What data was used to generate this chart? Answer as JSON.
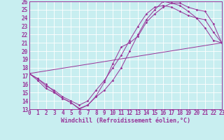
{
  "xlabel": "Windchill (Refroidissement éolien,°C)",
  "bg_color": "#c8eef0",
  "grid_color": "#ffffff",
  "line_color": "#993399",
  "x_min": 0,
  "x_max": 23,
  "y_min": 13,
  "y_max": 26,
  "lines": [
    {
      "x": [
        0,
        1,
        2,
        3,
        4,
        5,
        6,
        7,
        8,
        9,
        10,
        11,
        12,
        13,
        14,
        15,
        16,
        17,
        18,
        19,
        20,
        21,
        22,
        23
      ],
      "y": [
        17.3,
        16.7,
        16.0,
        15.1,
        14.3,
        13.8,
        13.1,
        13.5,
        14.6,
        16.3,
        18.5,
        20.5,
        21.0,
        21.8,
        23.5,
        24.5,
        25.3,
        25.8,
        25.8,
        25.3,
        25.0,
        24.8,
        23.3,
        21.0
      ]
    },
    {
      "x": [
        0,
        1,
        2,
        3,
        4,
        5,
        6,
        7,
        8,
        9,
        10,
        11,
        12,
        13,
        14,
        15,
        16,
        17,
        18,
        19,
        20,
        21,
        22,
        23
      ],
      "y": [
        17.3,
        16.7,
        15.8,
        15.3,
        14.5,
        14.0,
        13.5,
        14.0,
        15.3,
        16.5,
        18.0,
        19.5,
        21.3,
        23.0,
        24.5,
        25.3,
        25.5,
        25.3,
        24.8,
        24.3,
        24.0,
        22.8,
        21.3,
        21.0
      ]
    },
    {
      "x": [
        0,
        23
      ],
      "y": [
        17.3,
        21.0
      ]
    },
    {
      "x": [
        0,
        1,
        2,
        3,
        4,
        5,
        6,
        7,
        8,
        9,
        10,
        11,
        12,
        13,
        14,
        15,
        16,
        17,
        18,
        19,
        20,
        21,
        22,
        23
      ],
      "y": [
        17.3,
        16.5,
        15.5,
        15.0,
        14.3,
        13.8,
        13.0,
        13.5,
        14.5,
        15.3,
        16.5,
        18.0,
        20.0,
        22.0,
        23.8,
        25.0,
        26.0,
        25.8,
        25.5,
        24.8,
        24.0,
        23.8,
        22.3,
        21.0
      ]
    }
  ],
  "tick_fontsize": 5.5,
  "label_fontsize": 6,
  "xticks": [
    0,
    1,
    2,
    3,
    4,
    5,
    6,
    7,
    8,
    9,
    10,
    11,
    12,
    13,
    14,
    15,
    16,
    17,
    18,
    19,
    20,
    21,
    22,
    23
  ],
  "yticks": [
    13,
    14,
    15,
    16,
    17,
    18,
    19,
    20,
    21,
    22,
    23,
    24,
    25,
    26
  ],
  "figsize": [
    3.2,
    2.0
  ],
  "dpi": 100
}
